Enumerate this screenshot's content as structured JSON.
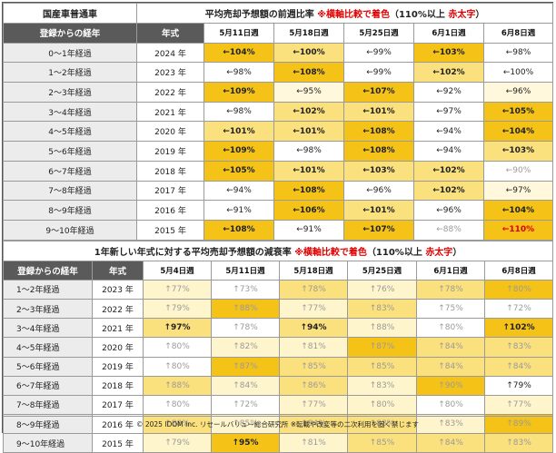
{
  "top": {
    "corner_title": "国産車普通車",
    "title_main": "平均売却予想額の前週比率 ",
    "title_note": "※横軸比較で着色",
    "title_paren_open": "（110%以上 ",
    "title_red": "赤太字",
    "title_paren_close": "）",
    "col_elapsed": "登録からの経年",
    "col_year": "年式",
    "weeks": [
      "5月11日週",
      "5月18日週",
      "5月25日週",
      "6月1日週",
      "6月8日週"
    ],
    "rows": [
      {
        "elapsed": "0～1年経過",
        "year": "2024 年",
        "cells": [
          {
            "t": "←104%",
            "c": "#f5c318",
            "b": true
          },
          {
            "t": "←100%",
            "c": "#fbe07e",
            "b": true
          },
          {
            "t": "←99%",
            "c": "#ffffff"
          },
          {
            "t": "←103%",
            "c": "#f5c318",
            "b": true
          },
          {
            "t": "←98%",
            "c": "#ffffff"
          }
        ]
      },
      {
        "elapsed": "1～2年経過",
        "year": "2023 年",
        "cells": [
          {
            "t": "←98%",
            "c": "#ffffff"
          },
          {
            "t": "←108%",
            "c": "#f5c318",
            "b": true
          },
          {
            "t": "←99%",
            "c": "#ffffff"
          },
          {
            "t": "←102%",
            "c": "#fbe07e",
            "b": true
          },
          {
            "t": "←100%",
            "c": "#ffffff"
          }
        ]
      },
      {
        "elapsed": "2～3年経過",
        "year": "2022 年",
        "cells": [
          {
            "t": "←109%",
            "c": "#f5c318",
            "b": true
          },
          {
            "t": "←95%",
            "c": "#fff8dc"
          },
          {
            "t": "←107%",
            "c": "#f5c318",
            "b": true
          },
          {
            "t": "←92%",
            "c": "#ffffff"
          },
          {
            "t": "←96%",
            "c": "#fff8dc"
          }
        ]
      },
      {
        "elapsed": "3～4年経過",
        "year": "2021 年",
        "cells": [
          {
            "t": "←98%",
            "c": "#ffffff"
          },
          {
            "t": "←102%",
            "c": "#fbe07e",
            "b": true
          },
          {
            "t": "←101%",
            "c": "#fbe07e",
            "b": true
          },
          {
            "t": "←97%",
            "c": "#ffffff"
          },
          {
            "t": "←105%",
            "c": "#f5c318",
            "b": true
          }
        ]
      },
      {
        "elapsed": "4～5年経過",
        "year": "2020 年",
        "cells": [
          {
            "t": "←101%",
            "c": "#fbe07e",
            "b": true
          },
          {
            "t": "←101%",
            "c": "#fbe07e",
            "b": true
          },
          {
            "t": "←108%",
            "c": "#f5c318",
            "b": true
          },
          {
            "t": "←94%",
            "c": "#ffffff"
          },
          {
            "t": "←104%",
            "c": "#f5c318",
            "b": true
          }
        ]
      },
      {
        "elapsed": "5～6年経過",
        "year": "2019 年",
        "cells": [
          {
            "t": "←109%",
            "c": "#f5c318",
            "b": true
          },
          {
            "t": "←98%",
            "c": "#ffffff"
          },
          {
            "t": "←108%",
            "c": "#f5c318",
            "b": true
          },
          {
            "t": "←94%",
            "c": "#ffffff"
          },
          {
            "t": "←103%",
            "c": "#fbe07e",
            "b": true
          }
        ]
      },
      {
        "elapsed": "6～7年経過",
        "year": "2018 年",
        "cells": [
          {
            "t": "←105%",
            "c": "#f5c318",
            "b": true
          },
          {
            "t": "←101%",
            "c": "#fbe07e",
            "b": true
          },
          {
            "t": "←103%",
            "c": "#fbe07e",
            "b": true
          },
          {
            "t": "←102%",
            "c": "#fbe07e",
            "b": true
          },
          {
            "t": "←90%",
            "c": "#ffffff",
            "f": true
          }
        ]
      },
      {
        "elapsed": "7～8年経過",
        "year": "2017 年",
        "cells": [
          {
            "t": "←94%",
            "c": "#ffffff"
          },
          {
            "t": "←108%",
            "c": "#f5c318",
            "b": true
          },
          {
            "t": "←96%",
            "c": "#ffffff"
          },
          {
            "t": "←102%",
            "c": "#fbe07e",
            "b": true
          },
          {
            "t": "←97%",
            "c": "#fff8dc"
          }
        ]
      },
      {
        "elapsed": "8～9年経過",
        "year": "2016 年",
        "cells": [
          {
            "t": "←91%",
            "c": "#ffffff"
          },
          {
            "t": "←106%",
            "c": "#f5c318",
            "b": true
          },
          {
            "t": "←101%",
            "c": "#fbe07e",
            "b": true
          },
          {
            "t": "←96%",
            "c": "#ffffff"
          },
          {
            "t": "←104%",
            "c": "#f5c318",
            "b": true
          }
        ]
      },
      {
        "elapsed": "9～10年経過",
        "year": "2015 年",
        "cells": [
          {
            "t": "←108%",
            "c": "#f5c318",
            "b": true
          },
          {
            "t": "←91%",
            "c": "#ffffff"
          },
          {
            "t": "←107%",
            "c": "#f5c318",
            "b": true
          },
          {
            "t": "←88%",
            "c": "#ffffff",
            "f": true
          },
          {
            "t": "←110%",
            "c": "#f5c318",
            "b": true,
            "r": true
          }
        ]
      }
    ]
  },
  "bottom": {
    "title_main": "1年新しい年式に対する平均売却予想額の減衰率 ",
    "title_note": "※横軸比較で着色",
    "title_paren_open": "（110%以上 ",
    "title_red": "赤太字",
    "title_paren_close": "）",
    "col_elapsed": "登録からの経年",
    "col_year": "年式",
    "weeks": [
      "5月4日週",
      "5月11日週",
      "5月18日週",
      "5月25日週",
      "6月1日週",
      "6月8日週"
    ],
    "rows": [
      {
        "elapsed": "1～2年経過",
        "year": "2023 年",
        "cells": [
          {
            "t": "↑77%",
            "c": "#fff5cc",
            "f": true
          },
          {
            "t": "↑73%",
            "c": "#ffffff",
            "f": true
          },
          {
            "t": "↑78%",
            "c": "#fbe07e",
            "f": true
          },
          {
            "t": "↑76%",
            "c": "#fff5cc",
            "f": true
          },
          {
            "t": "↑78%",
            "c": "#fbe07e",
            "f": true
          },
          {
            "t": "↑80%",
            "c": "#f5c318",
            "f": true
          }
        ]
      },
      {
        "elapsed": "2～3年経過",
        "year": "2022 年",
        "cells": [
          {
            "t": "↑79%",
            "c": "#fff5cc",
            "f": true
          },
          {
            "t": "↑88%",
            "c": "#f5c318",
            "f": true
          },
          {
            "t": "↑77%",
            "c": "#fff5cc",
            "f": true
          },
          {
            "t": "↑83%",
            "c": "#fbe07e",
            "f": true
          },
          {
            "t": "↑75%",
            "c": "#ffffff",
            "f": true
          },
          {
            "t": "↑72%",
            "c": "#ffffff",
            "f": true
          }
        ]
      },
      {
        "elapsed": "3～4年経過",
        "year": "2021 年",
        "cells": [
          {
            "t": "↑97%",
            "c": "#fbe07e",
            "b": true
          },
          {
            "t": "↑78%",
            "c": "#ffffff",
            "f": true
          },
          {
            "t": "↑94%",
            "c": "#fbe07e",
            "b": true
          },
          {
            "t": "↑88%",
            "c": "#fff5cc",
            "f": true
          },
          {
            "t": "↑80%",
            "c": "#ffffff",
            "f": true
          },
          {
            "t": "↑102%",
            "c": "#f5c318",
            "b": true
          }
        ]
      },
      {
        "elapsed": "4～5年経過",
        "year": "2020 年",
        "cells": [
          {
            "t": "↑80%",
            "c": "#ffffff",
            "f": true
          },
          {
            "t": "↑82%",
            "c": "#fff5cc",
            "f": true
          },
          {
            "t": "↑81%",
            "c": "#fff5cc",
            "f": true
          },
          {
            "t": "↑87%",
            "c": "#f5c318",
            "f": true
          },
          {
            "t": "↑84%",
            "c": "#fbe07e",
            "f": true
          },
          {
            "t": "↑83%",
            "c": "#fbe07e",
            "f": true
          }
        ]
      },
      {
        "elapsed": "5～6年経過",
        "year": "2019 年",
        "cells": [
          {
            "t": "↑80%",
            "c": "#ffffff",
            "f": true
          },
          {
            "t": "↑87%",
            "c": "#f5c318",
            "f": true
          },
          {
            "t": "↑85%",
            "c": "#fbe07e",
            "f": true
          },
          {
            "t": "↑85%",
            "c": "#fbe07e",
            "f": true
          },
          {
            "t": "↑84%",
            "c": "#fbe07e",
            "f": true
          },
          {
            "t": "↑84%",
            "c": "#fbe07e",
            "f": true
          }
        ]
      },
      {
        "elapsed": "6～7年経過",
        "year": "2018 年",
        "cells": [
          {
            "t": "↑88%",
            "c": "#fbe07e",
            "f": true
          },
          {
            "t": "↑84%",
            "c": "#fff5cc",
            "f": true
          },
          {
            "t": "↑86%",
            "c": "#fbe07e",
            "f": true
          },
          {
            "t": "↑83%",
            "c": "#fff5cc",
            "f": true
          },
          {
            "t": "↑90%",
            "c": "#f5c318",
            "f": true
          },
          {
            "t": "↑79%",
            "c": "#ffffff"
          }
        ]
      },
      {
        "elapsed": "7～8年経過",
        "year": "2017 年",
        "cells": [
          {
            "t": "↑80%",
            "c": "#ffffff",
            "f": true
          },
          {
            "t": "↑72%",
            "c": "#ffffff",
            "f": true
          },
          {
            "t": "↑77%",
            "c": "#fff5cc",
            "f": true
          },
          {
            "t": "↑80%",
            "c": "#fff5cc",
            "f": true
          },
          {
            "t": "↑80%",
            "c": "#ffffff",
            "f": true
          },
          {
            "t": "↑77%",
            "c": "#fff5cc",
            "f": true
          }
        ]
      },
      {
        "elapsed": "8～9年経過",
        "year": "2016 年",
        "cells": [
          {
            "t": "↑88%",
            "c": "#fbe07e",
            "f": true
          },
          {
            "t": "↑85%",
            "c": "#fff5cc",
            "f": true
          },
          {
            "t": "↑84%",
            "c": "#fbe07e",
            "f": true
          },
          {
            "t": "↑88%",
            "c": "#fbe07e",
            "f": true
          },
          {
            "t": "↑83%",
            "c": "#fff5cc",
            "f": true
          },
          {
            "t": "↑89%",
            "c": "#f5c318",
            "f": true
          }
        ]
      },
      {
        "elapsed": "9～10年経過",
        "year": "2015 年",
        "cells": [
          {
            "t": "↑79%",
            "c": "#fff5cc",
            "f": true
          },
          {
            "t": "↑95%",
            "c": "#f5c318",
            "b": true
          },
          {
            "t": "↑81%",
            "c": "#fff5cc",
            "f": true
          },
          {
            "t": "↑85%",
            "c": "#fbe07e",
            "f": true
          },
          {
            "t": "↑84%",
            "c": "#fbe07e",
            "f": true
          },
          {
            "t": "↑83%",
            "c": "#fbe07e",
            "f": true
          }
        ]
      }
    ]
  },
  "footer": "© 2025 IDOM Inc. リセールバリュー総合研究所 ※転載や改変等の二次利用を固く禁じます",
  "colors": {
    "header_gray": "#5a5a5a",
    "label_gray": "#ececec",
    "strong_yellow": "#f5c318",
    "mid_yellow": "#fbe07e",
    "light_yellow": "#fff8dc",
    "accent_red": "#e00000"
  }
}
